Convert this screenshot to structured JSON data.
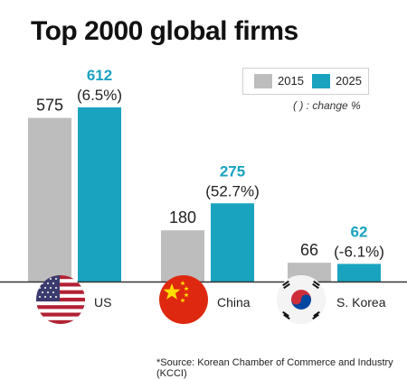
{
  "title": "Top 2000 global firms",
  "legend": {
    "items": [
      {
        "label": "2015",
        "color": "#bdbdbd"
      },
      {
        "label": "2025",
        "color": "#1aa3bf"
      }
    ]
  },
  "note": "( ) : change %",
  "source": "*Source: Korean Chamber of Commerce and Industry (KCCI)",
  "colors": {
    "y2015": "#bdbdbd",
    "y2025": "#1aa3bf",
    "label2015": "#222222",
    "label2025": "#1aa3bf"
  },
  "chart_data": {
    "type": "bar",
    "categories": [
      "US",
      "China",
      "S. Korea"
    ],
    "series": [
      {
        "name": "2015",
        "values": [
          575,
          180,
          66
        ]
      },
      {
        "name": "2025",
        "values": [
          612,
          275,
          62
        ]
      }
    ],
    "changes": [
      "(6.5%)",
      "(52.7%)",
      "(-6.1%)"
    ],
    "flags": [
      "us-flag-icon",
      "china-flag-icon",
      "south-korea-flag-icon"
    ]
  }
}
